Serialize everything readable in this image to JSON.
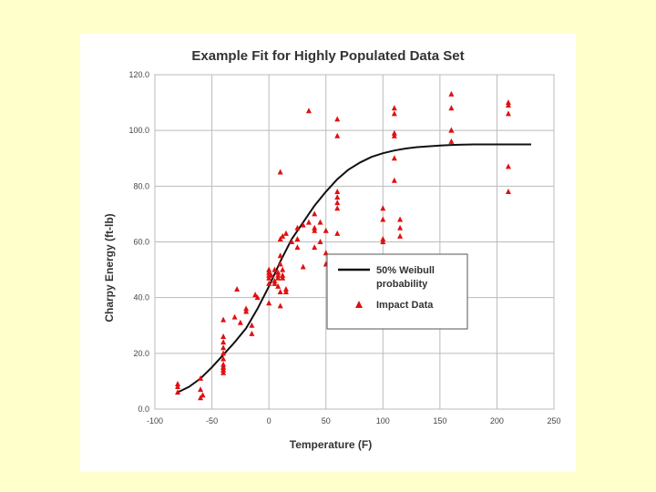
{
  "colors": {
    "page_background": "#FFFFCC",
    "panel_background": "#FFFFFF",
    "grid": "#BBBBBB",
    "curve": "#111111",
    "marker": "#E01010"
  },
  "chart_data": {
    "type": "scatter",
    "title": "Example Fit for Highly Populated Data Set",
    "xlabel": "Temperature (F)",
    "ylabel": "Charpy Energy (ft-lb)",
    "xlim": [
      -100,
      250
    ],
    "ylim": [
      0,
      120
    ],
    "x_ticks": [
      -100,
      -50,
      0,
      50,
      100,
      150,
      200,
      250
    ],
    "y_ticks": [
      0,
      20,
      40,
      60,
      80,
      100,
      120
    ],
    "x_tick_labels": [
      "-100",
      "-50",
      "0",
      "50",
      "100",
      "150",
      "200",
      "250"
    ],
    "y_tick_labels": [
      "0.0",
      "20.0",
      "40.0",
      "60.0",
      "80.0",
      "100.0",
      "120.0"
    ],
    "grid": true,
    "legend_position": "center-right",
    "series": [
      {
        "name": "50% Weibull probability",
        "kind": "line",
        "x": [
          -80,
          -70,
          -60,
          -50,
          -40,
          -30,
          -20,
          -10,
          0,
          10,
          20,
          30,
          40,
          50,
          60,
          70,
          80,
          90,
          100,
          110,
          120,
          130,
          140,
          150,
          160,
          170,
          180,
          190,
          200,
          210,
          220,
          230
        ],
        "y": [
          6,
          8,
          11,
          15,
          19.5,
          24,
          29,
          36,
          44,
          53,
          61,
          67,
          73,
          78,
          82.5,
          86,
          88.5,
          90.5,
          91.8,
          92.8,
          93.5,
          94,
          94.3,
          94.6,
          94.8,
          94.9,
          95,
          95,
          95,
          95,
          95,
          95
        ]
      },
      {
        "name": "Impact Data",
        "kind": "scatter",
        "x": [
          -80,
          -80,
          -80,
          -60,
          -60,
          -60,
          -58,
          -40,
          -40,
          -40,
          -40,
          -40,
          -40,
          -40,
          -40,
          -40,
          -40,
          -40,
          -40,
          -30,
          -28,
          -25,
          -20,
          -20,
          -15,
          -15,
          -12,
          -10,
          0,
          0,
          0,
          0,
          0,
          0,
          2,
          5,
          5,
          5,
          8,
          8,
          8,
          8,
          10,
          10,
          10,
          10,
          10,
          10,
          12,
          12,
          12,
          12,
          15,
          15,
          15,
          20,
          25,
          25,
          25,
          30,
          30,
          35,
          35,
          40,
          40,
          40,
          40,
          45,
          45,
          50,
          50,
          50,
          60,
          60,
          60,
          60,
          60,
          60,
          60,
          100,
          100,
          100,
          100,
          110,
          110,
          110,
          110,
          110,
          110,
          115,
          115,
          115,
          160,
          160,
          160,
          160,
          160,
          210,
          210,
          210,
          210,
          210
        ],
        "y": [
          9,
          8,
          6,
          11,
          7,
          4,
          5,
          32,
          26,
          24,
          22,
          20,
          18,
          16,
          15,
          14,
          13,
          14,
          15,
          33,
          43,
          31,
          36,
          35,
          30,
          27,
          41,
          40,
          38,
          45,
          48,
          49,
          50,
          47,
          48,
          50,
          46,
          45,
          49,
          48,
          47,
          44,
          61,
          55,
          52,
          42,
          37,
          85,
          62,
          50,
          48,
          47,
          63,
          43,
          42,
          60,
          65,
          61,
          58,
          66,
          51,
          67,
          107,
          70,
          65,
          64,
          58,
          67,
          60,
          64,
          56,
          52,
          104,
          98,
          78,
          76,
          74,
          72,
          63,
          72,
          68,
          61,
          60,
          108,
          106,
          99,
          98,
          90,
          82,
          68,
          65,
          62,
          113,
          108,
          100,
          100,
          96,
          110,
          109,
          106,
          87,
          78
        ]
      }
    ],
    "legend": [
      {
        "line1": "50%  Weibull",
        "line2": "probability"
      },
      {
        "line1": "Impact Data",
        "line2": ""
      }
    ]
  }
}
